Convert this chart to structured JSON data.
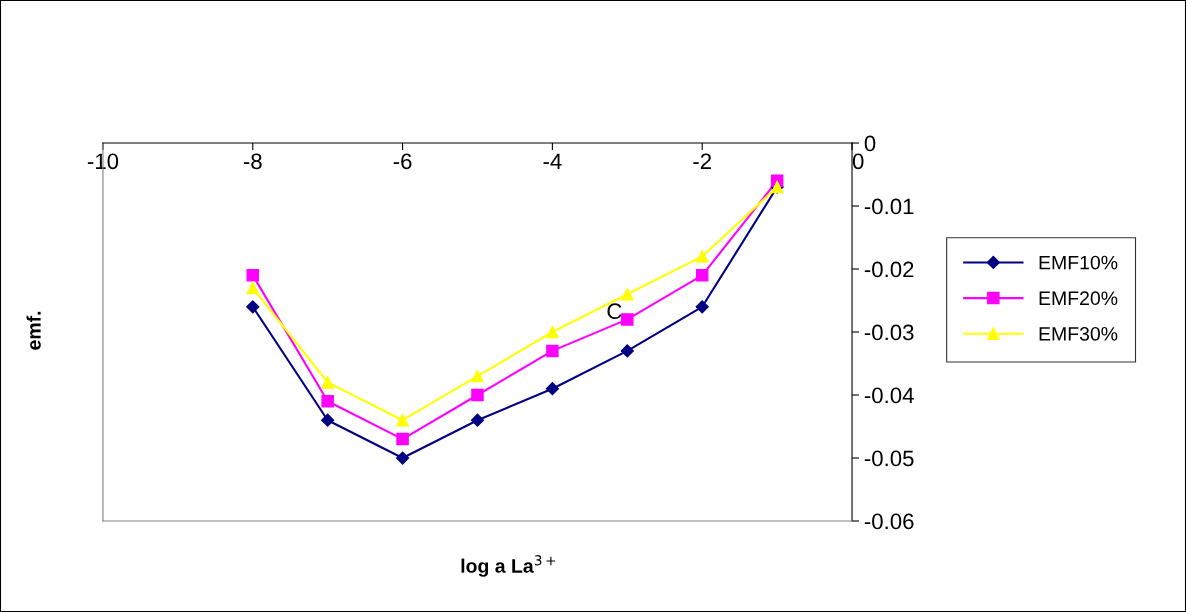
{
  "chart_data": {
    "type": "line",
    "xlabel": "log a La$^{3+}$",
    "ylabel": "emf.",
    "x": [
      -8,
      -7,
      -6,
      -5,
      -4,
      -3,
      -2,
      -1
    ],
    "series": [
      {
        "name": "EMF10%",
        "color": "#000080",
        "marker": "diamond",
        "values": [
          -0.026,
          -0.044,
          -0.05,
          -0.044,
          -0.039,
          -0.033,
          -0.026,
          -0.007
        ]
      },
      {
        "name": "EMF20%",
        "color": "#ff00ff",
        "marker": "square",
        "values": [
          -0.021,
          -0.041,
          -0.047,
          -0.04,
          -0.033,
          -0.028,
          -0.021,
          -0.006
        ]
      },
      {
        "name": "EMF30%",
        "color": "#ffff00",
        "marker": "triangle",
        "values": [
          -0.023,
          -0.038,
          -0.044,
          -0.037,
          -0.03,
          -0.024,
          -0.018,
          -0.007
        ]
      }
    ],
    "annotations": [
      "C"
    ],
    "xlim": [
      -10,
      0
    ],
    "xticks": [
      -10,
      -8,
      -6,
      -4,
      -2,
      0
    ],
    "ylim": [
      -0.06,
      0
    ],
    "yticks": [
      -0.06,
      -0.05,
      -0.04,
      -0.03,
      -0.02,
      -0.01,
      0
    ],
    "grid": false,
    "legend": "right",
    "line_style": "solid"
  }
}
